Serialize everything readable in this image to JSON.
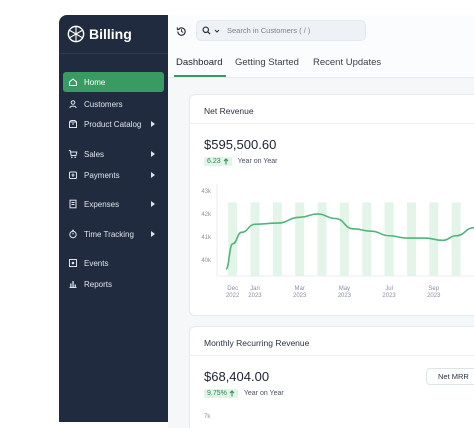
{
  "app": {
    "name": "Billing"
  },
  "sidebar": {
    "items": [
      {
        "label": "Home",
        "icon": "home-icon",
        "active": true,
        "has_caret": false
      },
      {
        "label": "Customers",
        "icon": "user-icon",
        "active": false,
        "has_caret": false
      },
      {
        "label": "Product Catalog",
        "icon": "box-icon",
        "active": false,
        "has_caret": true
      },
      {
        "label": "Sales",
        "icon": "cart-icon",
        "active": false,
        "has_caret": true
      },
      {
        "label": "Payments",
        "icon": "payments-icon",
        "active": false,
        "has_caret": true
      },
      {
        "label": "Expenses",
        "icon": "receipt-icon",
        "active": false,
        "has_caret": true
      },
      {
        "label": "Time Tracking",
        "icon": "stopwatch-icon",
        "active": false,
        "has_caret": true
      },
      {
        "label": "Events",
        "icon": "events-icon",
        "active": false,
        "has_caret": false
      },
      {
        "label": "Reports",
        "icon": "bar-chart-icon",
        "active": false,
        "has_caret": false
      }
    ]
  },
  "search": {
    "placeholder": "Search in Customers ( / )"
  },
  "tabs": [
    {
      "label": "Dashboard",
      "active": true
    },
    {
      "label": "Getting Started",
      "active": false
    },
    {
      "label": "Recent Updates",
      "active": false
    }
  ],
  "net_revenue": {
    "title": "Net Revenue",
    "value": "$595,500.60",
    "delta": "6.23",
    "delta_suffix": "Year on Year"
  },
  "mrr": {
    "title": "Monthly Recurring Revenue",
    "value": "$68,404.00",
    "delta": "9.75%",
    "delta_suffix": "Year on Year",
    "dropdown_label": "Net MRR",
    "y_tick_partial": "7k"
  },
  "colors": {
    "accent": "#3a9b62",
    "sidebar": "#202b3f",
    "line": "#4fb57a",
    "bar": "#e3f4e9"
  },
  "chart_data": {
    "type": "line",
    "title": "Net Revenue",
    "y_ticks": [
      "43k",
      "42k",
      "41k",
      "40k"
    ],
    "y_tick_values": [
      43000,
      42000,
      41000,
      40000
    ],
    "ylim": [
      39300,
      43300
    ],
    "x_ticks": [
      {
        "month": "Dec",
        "year": "2022",
        "x": 1
      },
      {
        "month": "Jan",
        "year": "2023",
        "x": 2
      },
      {
        "month": "Mar",
        "year": "2023",
        "x": 4
      },
      {
        "month": "May",
        "year": "2023",
        "x": 6
      },
      {
        "month": "Jul",
        "year": "2023",
        "x": 8
      },
      {
        "month": "Sep",
        "year": "2023",
        "x": 10
      }
    ],
    "xlim": [
      0.3,
      11.8
    ],
    "bars": {
      "x": [
        1,
        2,
        3,
        4,
        5,
        6,
        7,
        8,
        9,
        10,
        11
      ],
      "value": 42500
    },
    "series": [
      {
        "x": [
          0.7,
          1.0,
          1.4,
          2.0,
          3.0,
          4.0,
          4.8,
          5.6,
          6.4,
          7.2,
          8.0,
          8.8,
          9.6,
          10.4,
          11.0,
          11.8
        ],
        "y": [
          39600,
          40700,
          41200,
          41550,
          41600,
          41850,
          42000,
          41800,
          41350,
          41250,
          41050,
          40950,
          40950,
          40850,
          41050,
          41400
        ]
      }
    ],
    "grid": true,
    "legend": "none"
  }
}
